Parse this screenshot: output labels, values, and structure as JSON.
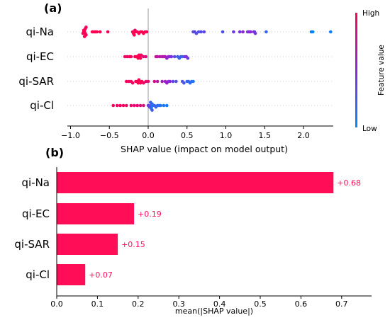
{
  "panel_a": {
    "label": "(a)",
    "colorbar": {
      "high": "High",
      "low": "Low",
      "title": "Feature value"
    }
  },
  "panel_b": {
    "label": "(b)"
  },
  "colors": {
    "high": "#ff0052",
    "low": "#008bfb",
    "bar": "#ff0d57",
    "grid": "#cccccc"
  },
  "chart_data": [
    {
      "type": "scatter",
      "subtype": "shap-beeswarm",
      "xlabel": "SHAP value (impact on model output)",
      "xlim": [
        -1.05,
        2.45
      ],
      "xticks": [
        -1.0,
        -0.5,
        0.0,
        0.5,
        1.0,
        1.5,
        2.0
      ],
      "xtick_labels": [
        "−1.0",
        "−0.5",
        "0.0",
        "0.5",
        "1.0",
        "1.5",
        "2.0"
      ],
      "categories": [
        "qi-Na",
        "qi-EC",
        "qi-SAR",
        "qi-Cl"
      ],
      "series": [
        {
          "name": "qi-Na",
          "points": [
            [
              -0.82,
              1.0
            ],
            [
              -0.83,
              1.0
            ],
            [
              -0.81,
              0.95
            ],
            [
              -0.82,
              0.98
            ],
            [
              -0.8,
              1.0
            ],
            [
              -0.84,
              1.0
            ],
            [
              -0.81,
              1.0
            ],
            [
              -0.83,
              0.97
            ],
            [
              -0.82,
              1.0
            ],
            [
              -0.8,
              0.96
            ],
            [
              -0.72,
              1.0
            ],
            [
              -0.7,
              1.0
            ],
            [
              -0.68,
              1.0
            ],
            [
              -0.66,
              1.0
            ],
            [
              -0.62,
              1.0
            ],
            [
              -0.52,
              0.95
            ],
            [
              -0.2,
              1.0
            ],
            [
              -0.18,
              0.98
            ],
            [
              -0.19,
              1.0
            ],
            [
              -0.17,
              0.95
            ],
            [
              -0.18,
              1.0
            ],
            [
              -0.16,
              1.0
            ],
            [
              -0.14,
              0.98
            ],
            [
              -0.12,
              1.0
            ],
            [
              -0.1,
              1.0
            ],
            [
              -0.08,
              1.0
            ],
            [
              -0.06,
              1.0
            ],
            [
              -0.04,
              1.0
            ],
            [
              -0.02,
              0.95
            ],
            [
              0.58,
              0.3
            ],
            [
              0.6,
              0.35
            ],
            [
              0.62,
              0.3
            ],
            [
              0.65,
              0.3
            ],
            [
              0.68,
              0.3
            ],
            [
              0.72,
              0.35
            ],
            [
              0.96,
              0.3
            ],
            [
              1.1,
              0.4
            ],
            [
              1.18,
              0.45
            ],
            [
              1.22,
              0.5
            ],
            [
              1.28,
              0.4
            ],
            [
              1.3,
              0.5
            ],
            [
              1.32,
              0.5
            ],
            [
              1.36,
              0.4
            ],
            [
              1.37,
              0.42
            ],
            [
              1.38,
              0.45
            ],
            [
              1.52,
              0.2
            ],
            [
              2.1,
              0.05
            ],
            [
              2.12,
              0.05
            ],
            [
              2.35,
              0.05
            ]
          ]
        },
        {
          "name": "qi-EC",
          "points": [
            [
              -0.3,
              0.95
            ],
            [
              -0.27,
              0.95
            ],
            [
              -0.24,
              0.95
            ],
            [
              -0.22,
              0.95
            ],
            [
              -0.17,
              1.0
            ],
            [
              -0.15,
              0.98
            ],
            [
              -0.14,
              1.0
            ],
            [
              -0.13,
              1.0
            ],
            [
              -0.12,
              0.97
            ],
            [
              -0.11,
              1.0
            ],
            [
              -0.1,
              1.0
            ],
            [
              -0.09,
              0.95
            ],
            [
              -0.06,
              0.85
            ],
            [
              -0.03,
              0.85
            ],
            [
              0.1,
              0.75
            ],
            [
              0.12,
              0.7
            ],
            [
              0.15,
              0.7
            ],
            [
              0.18,
              0.65
            ],
            [
              0.2,
              0.7
            ],
            [
              0.22,
              0.6
            ],
            [
              0.24,
              0.55
            ],
            [
              0.26,
              0.55
            ],
            [
              0.28,
              0.5
            ],
            [
              0.3,
              0.45
            ],
            [
              0.34,
              0.3
            ],
            [
              0.38,
              0.25
            ],
            [
              0.4,
              0.2
            ],
            [
              0.42,
              0.2
            ],
            [
              0.44,
              0.2
            ],
            [
              0.47,
              0.45
            ],
            [
              0.49,
              0.45
            ],
            [
              0.51,
              0.4
            ]
          ]
        },
        {
          "name": "qi-SAR",
          "points": [
            [
              -0.28,
              0.95
            ],
            [
              -0.25,
              0.95
            ],
            [
              -0.22,
              0.95
            ],
            [
              -0.2,
              0.95
            ],
            [
              -0.16,
              1.0
            ],
            [
              -0.14,
              0.98
            ],
            [
              -0.13,
              1.0
            ],
            [
              -0.12,
              1.0
            ],
            [
              -0.11,
              0.97
            ],
            [
              -0.1,
              1.0
            ],
            [
              -0.08,
              1.0
            ],
            [
              -0.06,
              0.95
            ],
            [
              -0.03,
              0.9
            ],
            [
              0.0,
              0.9
            ],
            [
              0.08,
              0.8
            ],
            [
              0.12,
              0.7
            ],
            [
              0.18,
              0.6
            ],
            [
              0.22,
              0.6
            ],
            [
              0.24,
              0.55
            ],
            [
              0.26,
              0.5
            ],
            [
              0.28,
              0.5
            ],
            [
              0.32,
              0.35
            ],
            [
              0.36,
              0.3
            ],
            [
              0.44,
              0.3
            ],
            [
              0.46,
              0.25
            ],
            [
              0.5,
              0.2
            ],
            [
              0.52,
              0.2
            ],
            [
              0.54,
              0.15
            ],
            [
              0.56,
              0.15
            ],
            [
              0.58,
              0.1
            ]
          ]
        },
        {
          "name": "qi-Cl",
          "points": [
            [
              -0.45,
              0.95
            ],
            [
              -0.4,
              0.95
            ],
            [
              -0.36,
              0.95
            ],
            [
              -0.32,
              0.95
            ],
            [
              -0.28,
              0.95
            ],
            [
              -0.22,
              0.9
            ],
            [
              -0.18,
              0.9
            ],
            [
              -0.14,
              0.9
            ],
            [
              -0.1,
              0.85
            ],
            [
              -0.06,
              0.85
            ],
            [
              0.0,
              0.4
            ],
            [
              0.02,
              0.35
            ],
            [
              0.03,
              0.3
            ],
            [
              0.04,
              0.2
            ],
            [
              0.05,
              0.15
            ],
            [
              0.04,
              0.1
            ],
            [
              0.06,
              0.1
            ],
            [
              0.03,
              0.2
            ],
            [
              0.05,
              0.25
            ],
            [
              0.08,
              0.2
            ],
            [
              0.1,
              0.2
            ],
            [
              0.12,
              0.15
            ],
            [
              0.14,
              0.15
            ],
            [
              0.16,
              0.1
            ],
            [
              0.2,
              0.1
            ],
            [
              0.24,
              0.1
            ]
          ]
        }
      ]
    },
    {
      "type": "bar",
      "orientation": "horizontal",
      "categories": [
        "qi-Na",
        "qi-EC",
        "qi-SAR",
        "qi-Cl"
      ],
      "values": [
        0.68,
        0.19,
        0.15,
        0.07
      ],
      "value_labels": [
        "+0.68",
        "+0.19",
        "+0.15",
        "+0.07"
      ],
      "xlabel": "mean(|SHAP value|)",
      "xlim": [
        0.0,
        0.75
      ],
      "xticks": [
        0.0,
        0.1,
        0.2,
        0.3,
        0.4,
        0.5,
        0.6,
        0.7
      ],
      "xtick_labels": [
        "0.0",
        "0.1",
        "0.2",
        "0.3",
        "0.4",
        "0.5",
        "0.6",
        "0.7"
      ]
    }
  ]
}
